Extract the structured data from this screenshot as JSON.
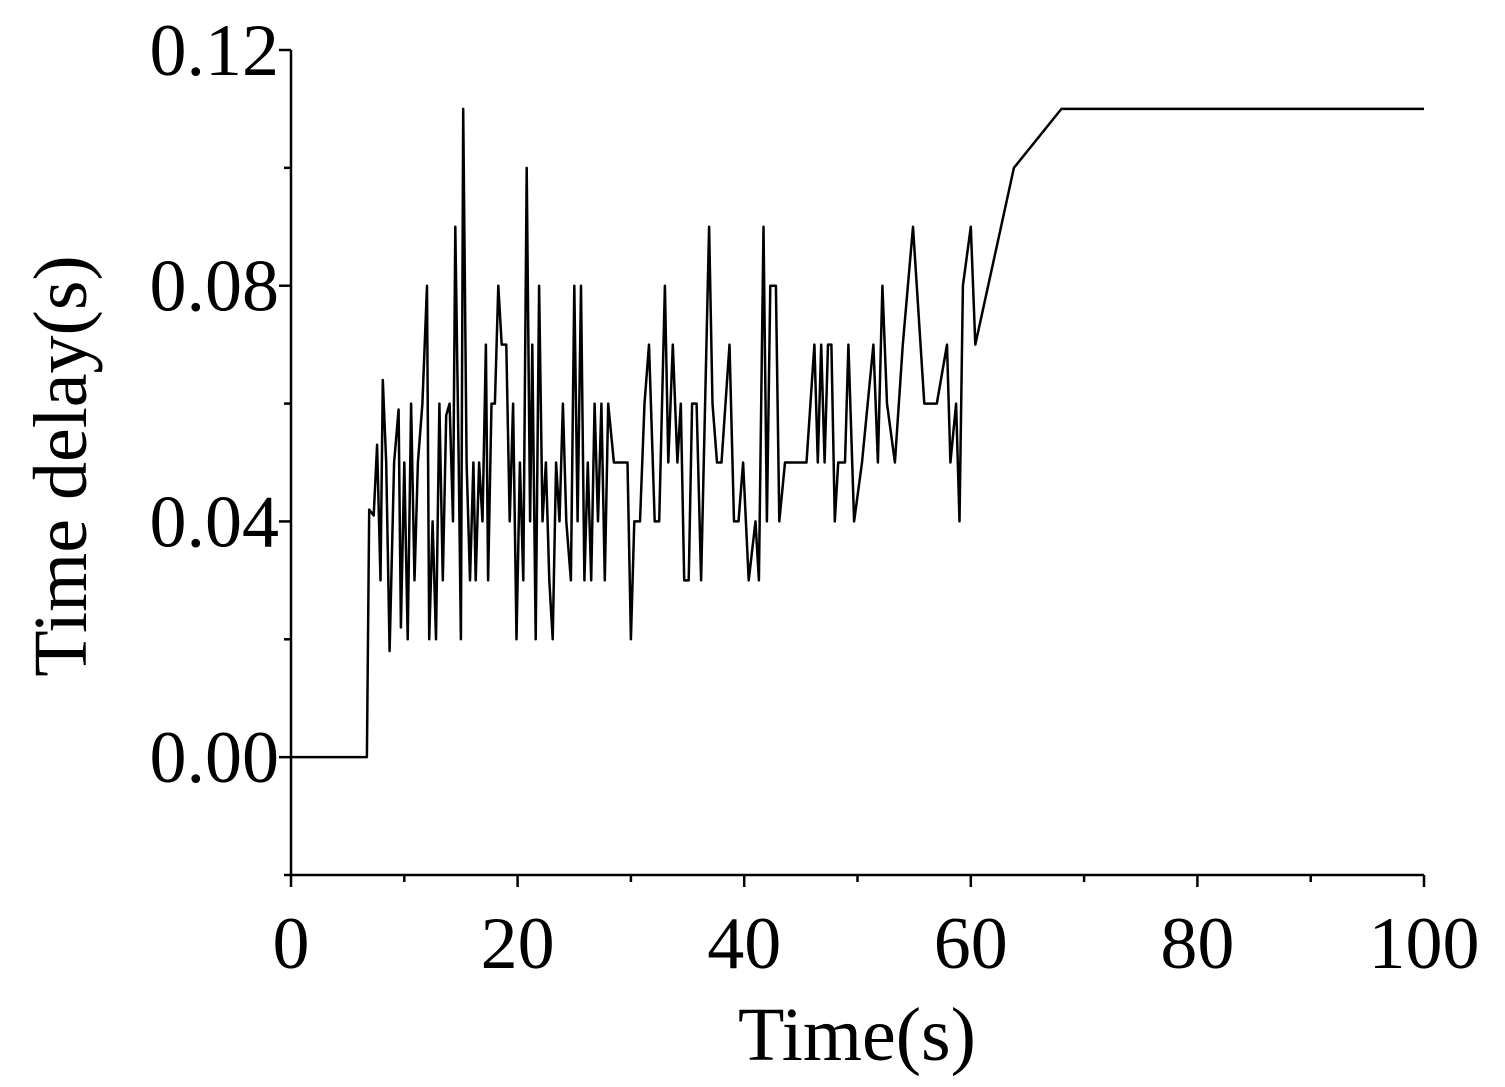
{
  "chart_data": {
    "type": "line",
    "xlabel": "Time(s)",
    "ylabel": "Time delay(s)",
    "color": "#000000",
    "x": [
      0,
      6.7,
      6.9,
      7.3,
      7.6,
      7.9,
      8.1,
      8.4,
      8.7,
      9.1,
      9.5,
      9.7,
      10.0,
      10.3,
      10.6,
      10.9,
      11.2,
      11.6,
      12.0,
      12.2,
      12.5,
      12.8,
      13.1,
      13.4,
      13.7,
      14.0,
      14.3,
      14.5,
      14.8,
      15.0,
      15.2,
      15.5,
      15.8,
      16.1,
      16.3,
      16.6,
      16.9,
      17.2,
      17.4,
      17.7,
      18.0,
      18.3,
      18.6,
      19.0,
      19.3,
      19.6,
      19.9,
      20.2,
      20.5,
      20.8,
      21.1,
      21.3,
      21.6,
      21.9,
      22.2,
      22.5,
      22.8,
      23.1,
      23.4,
      23.7,
      24.0,
      24.3,
      24.7,
      25.0,
      25.3,
      25.6,
      25.9,
      26.2,
      26.5,
      26.8,
      27.1,
      27.4,
      27.7,
      28.0,
      28.5,
      29.0,
      29.7,
      30.0,
      30.3,
      30.8,
      31.2,
      31.6,
      32.1,
      32.5,
      33.0,
      33.3,
      33.7,
      34.1,
      34.4,
      34.7,
      35.1,
      35.4,
      35.8,
      36.2,
      36.9,
      37.2,
      37.6,
      38.0,
      38.7,
      39.1,
      39.5,
      39.9,
      40.4,
      41.0,
      41.3,
      41.7,
      42.0,
      42.3,
      42.8,
      43.1,
      43.6,
      44.5,
      45.5,
      46.2,
      46.5,
      46.8,
      47.1,
      47.4,
      47.7,
      48.0,
      48.3,
      48.9,
      49.2,
      49.7,
      50.4,
      50.9,
      51.4,
      51.8,
      52.2,
      52.6,
      53.3,
      54.0,
      54.9,
      55.9,
      57.0,
      57.9,
      58.2,
      58.7,
      59.0,
      59.3,
      60.0,
      60.4,
      63.8,
      68.0,
      100
    ],
    "values": [
      0,
      0,
      0.042,
      0.041,
      0.053,
      0.03,
      0.064,
      0.05,
      0.018,
      0.05,
      0.059,
      0.022,
      0.05,
      0.02,
      0.06,
      0.03,
      0.05,
      0.06,
      0.08,
      0.02,
      0.04,
      0.02,
      0.06,
      0.03,
      0.058,
      0.06,
      0.04,
      0.09,
      0.05,
      0.02,
      0.11,
      0.05,
      0.03,
      0.05,
      0.03,
      0.05,
      0.04,
      0.07,
      0.03,
      0.06,
      0.06,
      0.08,
      0.07,
      0.07,
      0.04,
      0.06,
      0.02,
      0.05,
      0.03,
      0.1,
      0.04,
      0.07,
      0.02,
      0.08,
      0.04,
      0.05,
      0.03,
      0.02,
      0.05,
      0.04,
      0.06,
      0.04,
      0.03,
      0.08,
      0.04,
      0.08,
      0.03,
      0.05,
      0.03,
      0.06,
      0.04,
      0.06,
      0.03,
      0.06,
      0.05,
      0.05,
      0.05,
      0.02,
      0.04,
      0.04,
      0.06,
      0.07,
      0.04,
      0.04,
      0.08,
      0.05,
      0.07,
      0.05,
      0.06,
      0.03,
      0.03,
      0.06,
      0.06,
      0.03,
      0.09,
      0.06,
      0.05,
      0.05,
      0.07,
      0.04,
      0.04,
      0.05,
      0.03,
      0.04,
      0.03,
      0.09,
      0.04,
      0.08,
      0.08,
      0.04,
      0.05,
      0.05,
      0.05,
      0.07,
      0.05,
      0.07,
      0.05,
      0.07,
      0.07,
      0.04,
      0.05,
      0.05,
      0.07,
      0.04,
      0.05,
      0.06,
      0.07,
      0.05,
      0.08,
      0.06,
      0.05,
      0.07,
      0.09,
      0.06,
      0.06,
      0.07,
      0.05,
      0.06,
      0.04,
      0.08,
      0.09,
      0.07,
      0.1,
      0.11,
      0.11
    ],
    "xlim": [
      0,
      100
    ],
    "xticks": [
      0,
      20,
      40,
      60,
      80,
      100
    ],
    "xticks_minor": [
      10,
      30,
      50,
      70,
      90
    ],
    "ylim": [
      -0.02,
      0.12
    ],
    "yticks": [
      {
        "value": 0,
        "label": "0.00"
      },
      {
        "value": 0.04,
        "label": "0.04"
      },
      {
        "value": 0.08,
        "label": "0.08"
      },
      {
        "value": 0.12,
        "label": "0.12"
      }
    ],
    "yticks_minor": [
      -0.02,
      0.02,
      0.06,
      0.1
    ],
    "grid": false
  }
}
